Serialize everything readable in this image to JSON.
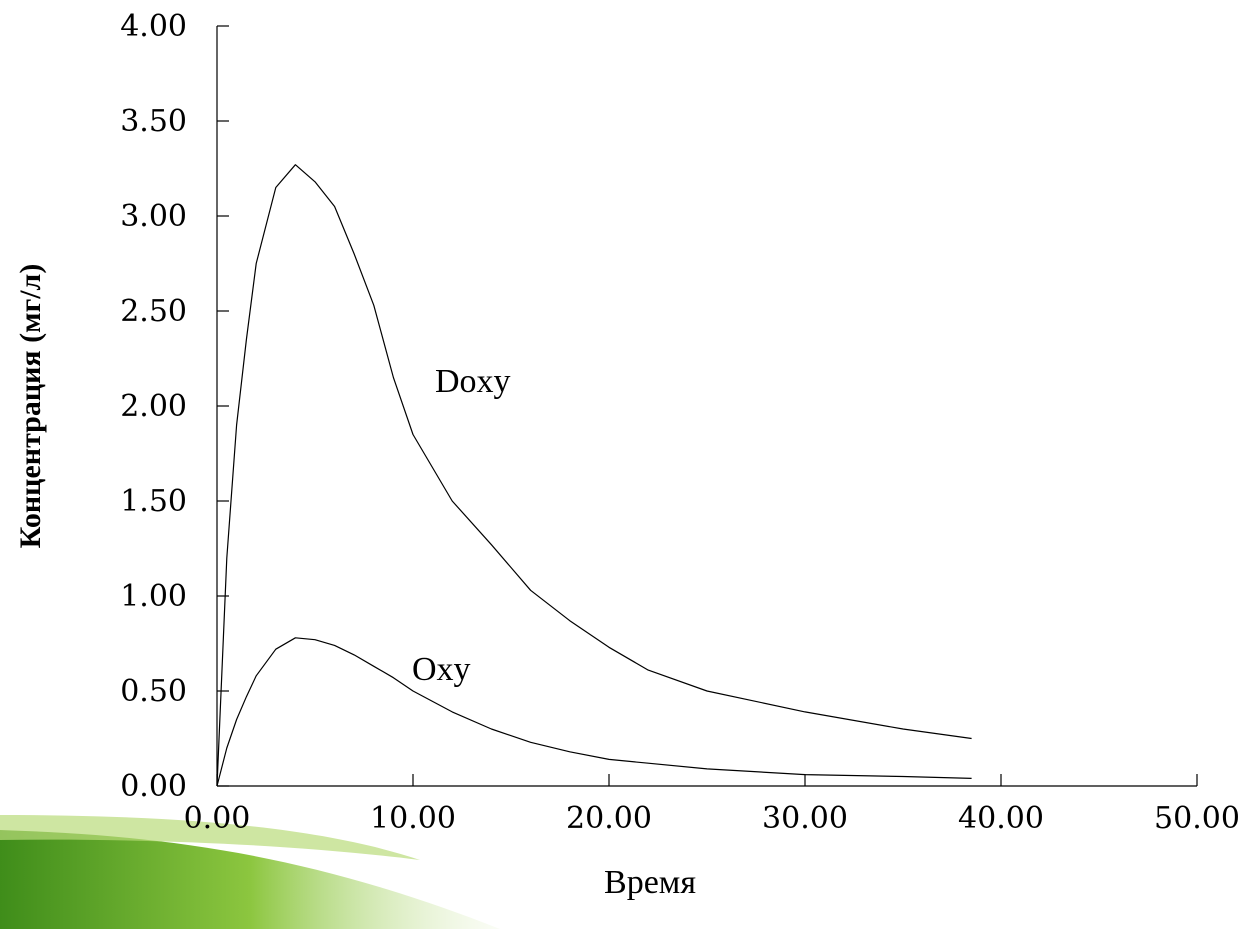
{
  "chart_data": {
    "type": "line",
    "x_label": "Время",
    "y_label": "Концентрация (мг/л)",
    "x": [
      0,
      0.5,
      1,
      1.5,
      2,
      3,
      4,
      5,
      6,
      7,
      8,
      9,
      10,
      12,
      14,
      16,
      18,
      20,
      22,
      25,
      30,
      35,
      38.5
    ],
    "series": [
      {
        "name": "Doxy",
        "color": "#000000",
        "values": [
          0,
          1.2,
          1.9,
          2.35,
          2.75,
          3.15,
          3.27,
          3.18,
          3.05,
          2.8,
          2.53,
          2.15,
          1.85,
          1.5,
          1.27,
          1.03,
          0.87,
          0.73,
          0.61,
          0.5,
          0.39,
          0.3,
          0.25
        ]
      },
      {
        "name": "Oxy",
        "color": "#000000",
        "values": [
          0,
          0.2,
          0.35,
          0.47,
          0.58,
          0.72,
          0.78,
          0.77,
          0.74,
          0.69,
          0.63,
          0.57,
          0.5,
          0.39,
          0.3,
          0.23,
          0.18,
          0.14,
          0.12,
          0.09,
          0.06,
          0.05,
          0.04
        ]
      }
    ],
    "xlim": [
      0,
      50
    ],
    "xticks": [
      {
        "value": 0,
        "label": "0.00"
      },
      {
        "value": 10,
        "label": "10.00"
      },
      {
        "value": 20,
        "label": "20.00"
      },
      {
        "value": 30,
        "label": "30.00"
      },
      {
        "value": 40,
        "label": "40.00"
      },
      {
        "value": 50,
        "label": "50.00"
      }
    ],
    "ylim": [
      0,
      4
    ],
    "yticks": [
      {
        "value": 0,
        "label": "0.00"
      },
      {
        "value": 0.5,
        "label": "0.50"
      },
      {
        "value": 1,
        "label": "1.00"
      },
      {
        "value": 1.5,
        "label": "1.50"
      },
      {
        "value": 2,
        "label": "2.00"
      },
      {
        "value": 2.5,
        "label": "2.50"
      },
      {
        "value": 3,
        "label": "3.00"
      },
      {
        "value": 3.5,
        "label": "3.50"
      },
      {
        "value": 4,
        "label": "4.00"
      }
    ],
    "grid": false
  }
}
